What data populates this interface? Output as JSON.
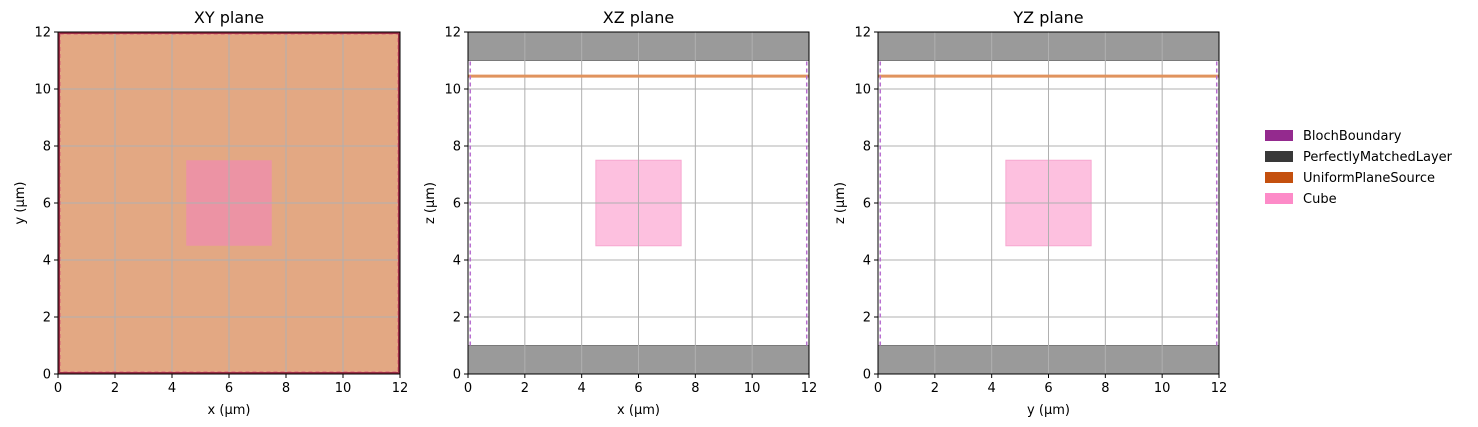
{
  "chart_data": [
    {
      "type": "geometry-plot",
      "title": "XY plane",
      "xlabel": "x (µm)",
      "ylabel": "y (µm)",
      "xlim": [
        0,
        12
      ],
      "ylim": [
        0,
        12
      ],
      "xticks": [
        "0",
        "2",
        "4",
        "6",
        "8",
        "10",
        "12"
      ],
      "yticks": [
        "0",
        "2",
        "4",
        "6",
        "8",
        "10",
        "12"
      ],
      "grid": true,
      "shapes": [
        {
          "kind": "source",
          "name": "UniformPlaneSource",
          "x": [
            0,
            12
          ],
          "y": [
            0,
            12
          ],
          "color": "#e3a883"
        },
        {
          "kind": "cube",
          "name": "Cube",
          "x": [
            4.5,
            7.5
          ],
          "y": [
            4.5,
            7.5
          ],
          "color": "#ec93a4"
        },
        {
          "kind": "boundary-dashed",
          "name": "BlochBoundary",
          "x": [
            0.06,
            11.94
          ],
          "y": [
            0.06,
            11.94
          ],
          "color": "#d9617a"
        },
        {
          "kind": "boundary-edge",
          "name": "PerfectlyMatchedLayer",
          "x": [
            0,
            12
          ],
          "y": [
            0,
            12
          ],
          "color": "#9b2d44"
        }
      ]
    },
    {
      "type": "geometry-plot",
      "title": "XZ plane",
      "xlabel": "x (µm)",
      "ylabel": "z (µm)",
      "xlim": [
        0,
        12
      ],
      "ylim": [
        0,
        12
      ],
      "xticks": [
        "0",
        "2",
        "4",
        "6",
        "8",
        "10",
        "12"
      ],
      "yticks": [
        "0",
        "2",
        "4",
        "6",
        "8",
        "10",
        "12"
      ],
      "grid": true,
      "shapes": [
        {
          "kind": "pml",
          "name": "PerfectlyMatchedLayer",
          "x": [
            0,
            12
          ],
          "y": [
            11,
            12
          ],
          "color": "#9a9a9a"
        },
        {
          "kind": "pml",
          "name": "PerfectlyMatchedLayer",
          "x": [
            0,
            12
          ],
          "y": [
            0,
            1
          ],
          "color": "#9a9a9a"
        },
        {
          "kind": "cube",
          "name": "Cube",
          "x": [
            4.5,
            7.5
          ],
          "y": [
            4.5,
            7.5
          ],
          "color": "#fdc0df"
        },
        {
          "kind": "source-line",
          "name": "UniformPlaneSource",
          "x": [
            0,
            12
          ],
          "y": 10.45,
          "color": "#e0935e"
        },
        {
          "kind": "bloch-side",
          "name": "BlochBoundary",
          "x": 0.08,
          "y": [
            1,
            11
          ],
          "color": "#b86fd0"
        },
        {
          "kind": "bloch-side",
          "name": "BlochBoundary",
          "x": 11.92,
          "y": [
            1,
            11
          ],
          "color": "#b86fd0"
        }
      ]
    },
    {
      "type": "geometry-plot",
      "title": "YZ plane",
      "xlabel": "y (µm)",
      "ylabel": "z (µm)",
      "xlim": [
        0,
        12
      ],
      "ylim": [
        0,
        12
      ],
      "xticks": [
        "0",
        "2",
        "4",
        "6",
        "8",
        "10",
        "12"
      ],
      "yticks": [
        "0",
        "2",
        "4",
        "6",
        "8",
        "10",
        "12"
      ],
      "grid": true,
      "shapes": [
        {
          "kind": "pml",
          "name": "PerfectlyMatchedLayer",
          "x": [
            0,
            12
          ],
          "y": [
            11,
            12
          ],
          "color": "#9a9a9a"
        },
        {
          "kind": "pml",
          "name": "PerfectlyMatchedLayer",
          "x": [
            0,
            12
          ],
          "y": [
            0,
            1
          ],
          "color": "#9a9a9a"
        },
        {
          "kind": "cube",
          "name": "Cube",
          "x": [
            4.5,
            7.5
          ],
          "y": [
            4.5,
            7.5
          ],
          "color": "#fdc0df"
        },
        {
          "kind": "source-line",
          "name": "UniformPlaneSource",
          "x": [
            0,
            12
          ],
          "y": 10.45,
          "color": "#e0935e"
        },
        {
          "kind": "bloch-side",
          "name": "BlochBoundary",
          "x": 0.08,
          "y": [
            1,
            11
          ],
          "color": "#b86fd0"
        },
        {
          "kind": "bloch-side",
          "name": "BlochBoundary",
          "x": 11.92,
          "y": [
            1,
            11
          ],
          "color": "#b86fd0"
        }
      ]
    }
  ],
  "legend": {
    "placement": "right",
    "items": [
      {
        "label": "BlochBoundary",
        "color": "#942a8e"
      },
      {
        "label": "PerfectlyMatchedLayer",
        "color": "#383838"
      },
      {
        "label": "UniformPlaneSource",
        "color": "#c4500e"
      },
      {
        "label": "Cube",
        "color": "#fd8bc8"
      }
    ]
  }
}
